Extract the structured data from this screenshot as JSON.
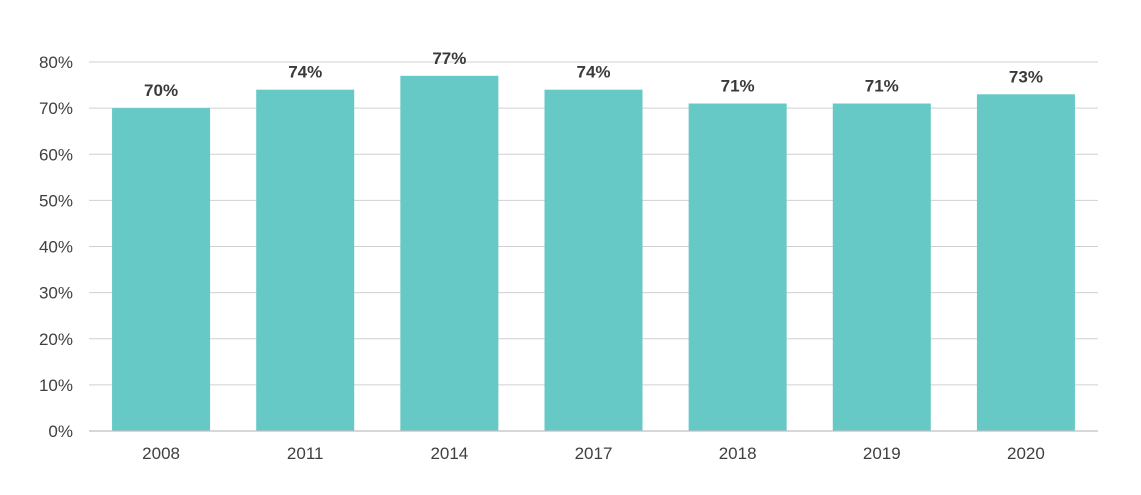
{
  "chart_data": {
    "type": "bar",
    "title": "",
    "xlabel": "",
    "ylabel": "",
    "categories": [
      "2008",
      "2011",
      "2014",
      "2017",
      "2018",
      "2019",
      "2020"
    ],
    "values": [
      70,
      74,
      77,
      74,
      71,
      71,
      73
    ],
    "data_labels": [
      "70%",
      "74%",
      "77%",
      "74%",
      "71%",
      "71%",
      "73%"
    ],
    "ylim": [
      0,
      80
    ],
    "y_ticks": [
      0,
      10,
      20,
      30,
      40,
      50,
      60,
      70,
      80
    ],
    "y_tick_labels": [
      "0%",
      "10%",
      "20%",
      "30%",
      "40%",
      "50%",
      "60%",
      "70%",
      "80%"
    ],
    "grid": true,
    "legend": "none",
    "bar_color": "#66c9c6"
  }
}
